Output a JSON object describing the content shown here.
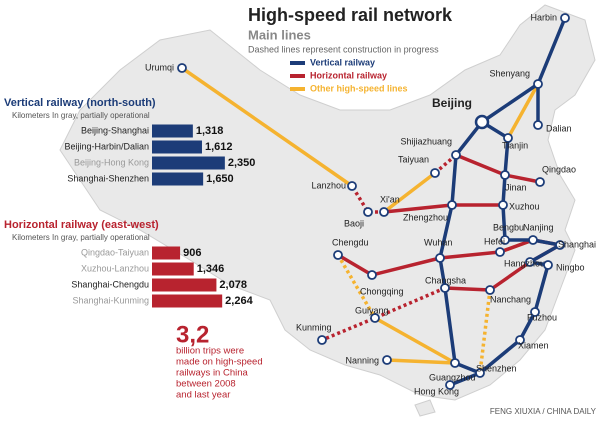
{
  "header": {
    "title": "High-speed rail network",
    "subtitle": "Main lines",
    "note": "Dashed lines represent construction in progress"
  },
  "legend": [
    {
      "label": "Vertical railway",
      "color": "#1c3c78"
    },
    {
      "label": "Horizontal railway",
      "color": "#b8232f"
    },
    {
      "label": "Other high-speed lines",
      "color": "#f5b330"
    }
  ],
  "chart_data": [
    {
      "type": "bar",
      "title": "Vertical railway (north-south)",
      "subtitle": "Kilometers  In gray, partially operational",
      "categories": [
        "Beijing-Shanghai",
        "Beijing-Harbin/Dalian",
        "Beijing-Hong Kong",
        "Shanghai-Shenzhen"
      ],
      "values": [
        1318,
        1612,
        2350,
        1650
      ],
      "value_labels": [
        "1,318",
        "1,612",
        "2,350",
        "1,650"
      ],
      "color": "#1c3c78",
      "label_colors": [
        "#222222",
        "#222222",
        "#999999",
        "#222222"
      ]
    },
    {
      "type": "bar",
      "title": "Horizontal railway (east-west)",
      "subtitle": "Kilometers  In gray, partially operational",
      "categories": [
        "Qingdao-Taiyuan",
        "Xuzhou-Lanzhou",
        "Shanghai-Chengdu",
        "Shanghai-Kunming"
      ],
      "values": [
        906,
        1346,
        2078,
        2264
      ],
      "value_labels": [
        "906",
        "1,346",
        "2,078",
        "2,264"
      ],
      "color": "#b8232f",
      "label_colors": [
        "#999999",
        "#999999",
        "#222222",
        "#999999"
      ]
    }
  ],
  "callout": {
    "number": "3,2",
    "lines": [
      "billion trips were",
      "made on high-speed",
      "railways in China",
      "between 2008",
      "and last year"
    ]
  },
  "map": {
    "cities": [
      "Harbin",
      "Shenyang",
      "Dalian",
      "Beijing",
      "Tianjin",
      "Urumqi",
      "Shijiazhuang",
      "Taiyuan",
      "Qingdao",
      "Jinan",
      "Lanzhou",
      "Xi'an",
      "Baoji",
      "Zhengzhou",
      "Xuzhou",
      "Bengbu",
      "Nanjing",
      "Hefei",
      "Shanghai",
      "Wuhan",
      "Hangzhou",
      "Ningbo",
      "Chengdu",
      "Chongqing",
      "Changsha",
      "Nanchang",
      "Kunming",
      "Guiyang",
      "Fuzhou",
      "Xiamen",
      "Nanning",
      "Guangzhou",
      "Shenzhen",
      "Hong Kong"
    ]
  },
  "credit": "FENG XIUXIA / CHINA DAILY"
}
